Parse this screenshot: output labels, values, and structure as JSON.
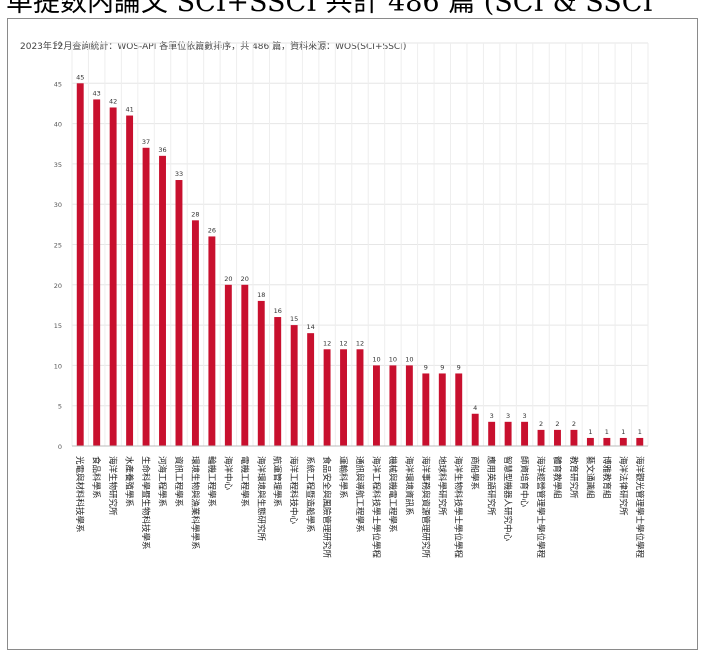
{
  "header_text": "单提数内論文 SCI+SSCI 共計 486 篇 (SCI & SSCI",
  "caption": "2023年12月查詢統計：WOS-API 各單位依篇數排序，共 486 篇，資料來源：WOS(SCI+SSCI)",
  "chart_data": {
    "type": "bar",
    "title": "",
    "xlabel": "",
    "ylabel": "",
    "ylim": [
      0,
      50
    ],
    "yticks": [
      0,
      5,
      10,
      15,
      20,
      25,
      30,
      35,
      40,
      45,
      50
    ],
    "grid": true,
    "bar_color": "#c8102e",
    "categories": [
      "光電與材料科技學系",
      "食品科學系",
      "海洋生物研究所",
      "水產養殖學系",
      "生命科學暨生物科技學系",
      "河海工程學系",
      "資訊工程學系",
      "環境生物與漁業科學學系",
      "輪機工程學系",
      "海洋中心",
      "電機工程學系",
      "海洋環境與生態研究所",
      "航運管理學系",
      "海洋工程科技中心",
      "系統工程暨造船學系",
      "食品安全與風險管理研究所",
      "運輸科學系",
      "通訊與導航工程學系",
      "海洋工程科技學士學位學程",
      "機械與機電工程學系",
      "海洋環境資訊系",
      "海洋事務與資源管理研究所",
      "地球科學研究所",
      "海洋生物科技學士學位學程",
      "商船學系",
      "應用英語研究所",
      "智慧型機器人研究中心",
      "師資培育中心",
      "海洋經營管理學士學位學程",
      "體育教學組",
      "教育研究所",
      "藝文通識組",
      "博雅教育組",
      "海洋法律研究所",
      "海洋觀光管理學士學位學程"
    ],
    "values": [
      45,
      43,
      42,
      41,
      37,
      36,
      33,
      28,
      26,
      20,
      20,
      18,
      16,
      15,
      14,
      12,
      12,
      12,
      10,
      10,
      10,
      9,
      9,
      9,
      4,
      3,
      3,
      3,
      2,
      2,
      2,
      1,
      1,
      1,
      1
    ]
  }
}
